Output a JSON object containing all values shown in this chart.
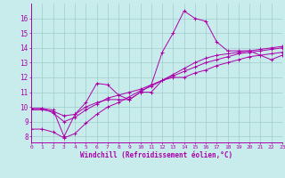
{
  "xlabel": "Windchill (Refroidissement éolien,°C)",
  "x_ticks": [
    0,
    1,
    2,
    3,
    4,
    5,
    6,
    7,
    8,
    9,
    10,
    11,
    12,
    13,
    14,
    15,
    16,
    17,
    18,
    19,
    20,
    21,
    22,
    23
  ],
  "y_ticks": [
    8,
    9,
    10,
    11,
    12,
    13,
    14,
    15,
    16
  ],
  "xlim": [
    0,
    23
  ],
  "ylim": [
    7.6,
    17.0
  ],
  "bg_color": "#c8ecec",
  "grid_color": "#a0cccc",
  "line_color": "#aa00aa",
  "series": [
    [
      9.9,
      9.9,
      9.8,
      8.0,
      9.5,
      10.3,
      11.6,
      11.5,
      10.8,
      10.5,
      11.0,
      11.5,
      13.7,
      15.0,
      16.5,
      16.0,
      15.8,
      14.4,
      13.8,
      13.8,
      13.8,
      13.5,
      13.2,
      13.5
    ],
    [
      9.8,
      9.8,
      9.7,
      9.4,
      9.5,
      10.0,
      10.3,
      10.5,
      10.5,
      10.5,
      11.0,
      11.0,
      11.8,
      12.0,
      12.0,
      12.3,
      12.5,
      12.8,
      13.0,
      13.2,
      13.4,
      13.5,
      13.6,
      13.7
    ],
    [
      9.9,
      9.9,
      9.6,
      9.0,
      9.3,
      9.8,
      10.2,
      10.6,
      10.8,
      11.0,
      11.2,
      11.5,
      11.8,
      12.1,
      12.4,
      12.7,
      13.0,
      13.2,
      13.4,
      13.6,
      13.7,
      13.8,
      13.9,
      14.0
    ],
    [
      8.5,
      8.5,
      8.3,
      7.9,
      8.2,
      8.9,
      9.5,
      10.0,
      10.3,
      10.7,
      11.1,
      11.4,
      11.8,
      12.2,
      12.6,
      13.0,
      13.3,
      13.5,
      13.6,
      13.7,
      13.8,
      13.9,
      14.0,
      14.1
    ]
  ]
}
